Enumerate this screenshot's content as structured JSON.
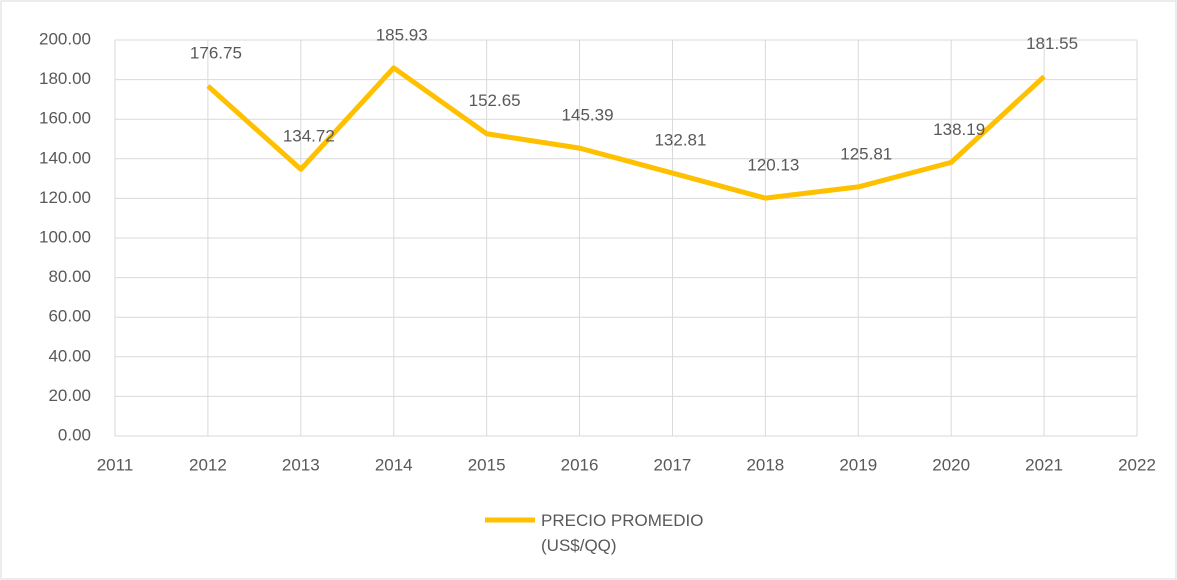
{
  "chart_data": {
    "type": "line",
    "x": [
      2012,
      2013,
      2014,
      2015,
      2016,
      2017,
      2018,
      2019,
      2020,
      2021
    ],
    "series": [
      {
        "name": "PRECIO PROMEDIO (US$/QQ)",
        "color": "#FFC000",
        "values": [
          176.75,
          134.72,
          185.93,
          152.65,
          145.39,
          132.81,
          120.13,
          125.81,
          138.19,
          181.55
        ]
      }
    ],
    "xlim": [
      2011,
      2022
    ],
    "xticks": [
      2011,
      2012,
      2013,
      2014,
      2015,
      2016,
      2017,
      2018,
      2019,
      2020,
      2021,
      2022
    ],
    "ylim": [
      0,
      200
    ],
    "yticks": [
      {
        "value": 0,
        "label": "0.00"
      },
      {
        "value": 20,
        "label": "20.00"
      },
      {
        "value": 40,
        "label": "40.00"
      },
      {
        "value": 60,
        "label": "60.00"
      },
      {
        "value": 80,
        "label": "80.00"
      },
      {
        "value": 100,
        "label": "100.00"
      },
      {
        "value": 120,
        "label": "120.00"
      },
      {
        "value": 140,
        "label": "140.00"
      },
      {
        "value": 160,
        "label": "160.00"
      },
      {
        "value": 180,
        "label": "180.00"
      },
      {
        "value": 200,
        "label": "200.00"
      }
    ],
    "grid": true,
    "legend": "bottom"
  }
}
